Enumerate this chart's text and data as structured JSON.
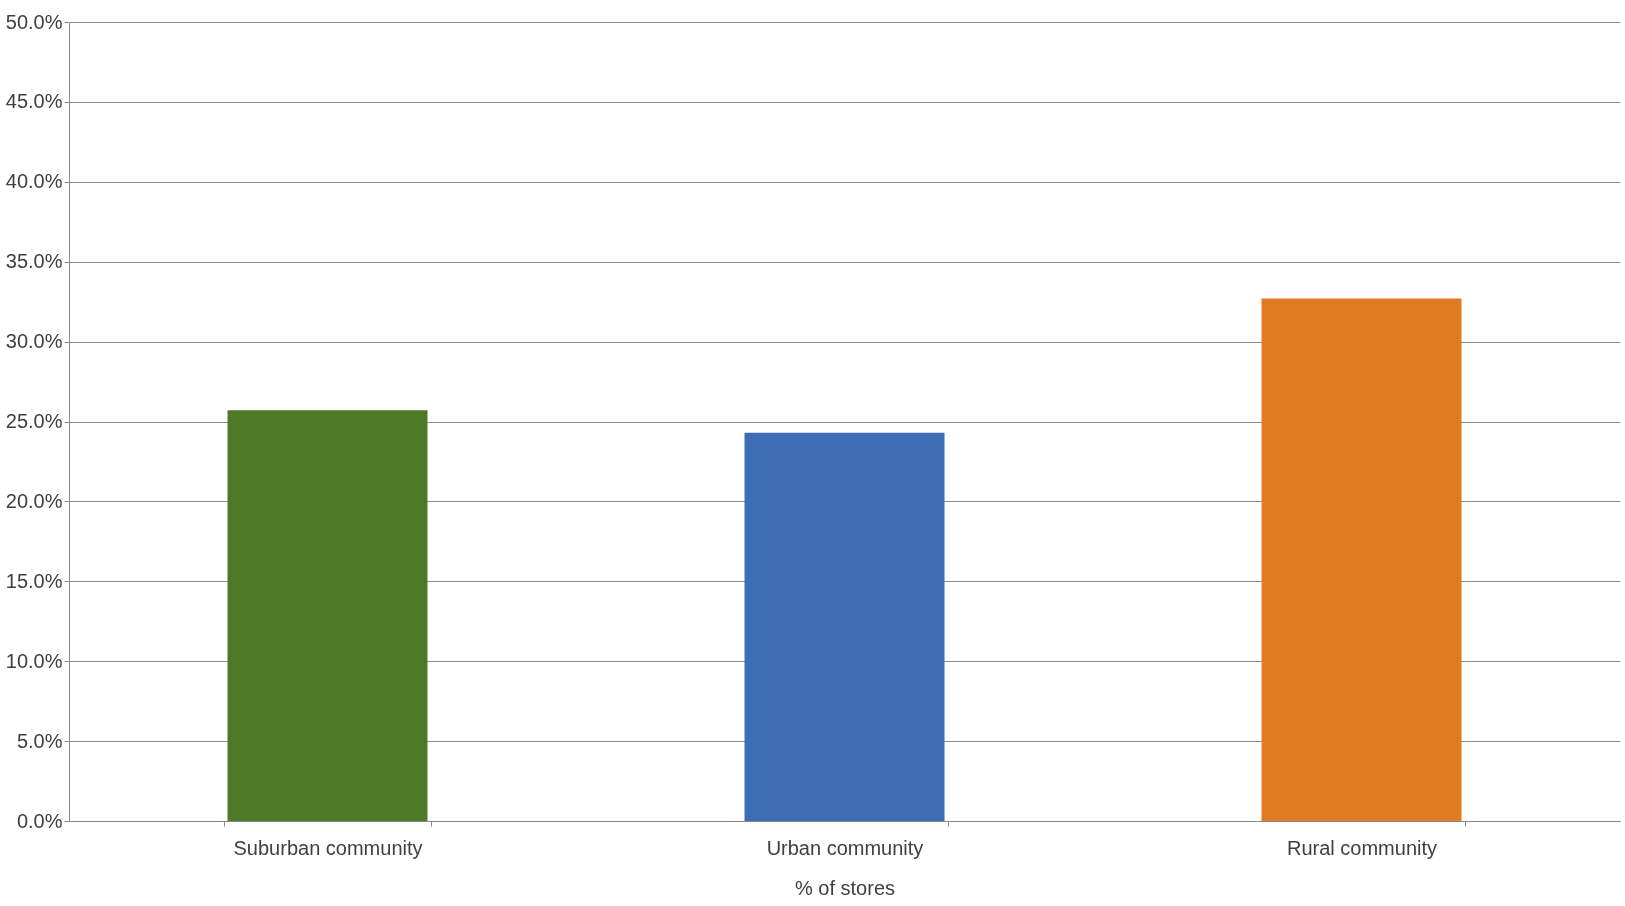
{
  "chart_data": {
    "type": "bar",
    "xlabel": "% of stores",
    "categories": [
      "Suburban community",
      "Urban community",
      "Rural community"
    ],
    "values": [
      25.7,
      24.3,
      32.7
    ],
    "colors": [
      "#4e7a27",
      "#3d6db5",
      "#e07b24"
    ],
    "ylim": [
      0,
      50
    ],
    "yticks": [
      {
        "value": 0,
        "label": "0.0%"
      },
      {
        "value": 5,
        "label": "5.0%"
      },
      {
        "value": 10,
        "label": "10.0%"
      },
      {
        "value": 15,
        "label": "15.0%"
      },
      {
        "value": 20,
        "label": "20.0%"
      },
      {
        "value": 25,
        "label": "25.0%"
      },
      {
        "value": 30,
        "label": "30.0%"
      },
      {
        "value": 35,
        "label": "35.0%"
      },
      {
        "value": 40,
        "label": "40.0%"
      },
      {
        "value": 45,
        "label": "45.0%"
      },
      {
        "value": 50,
        "label": "50.0%"
      }
    ],
    "grid": "y"
  }
}
